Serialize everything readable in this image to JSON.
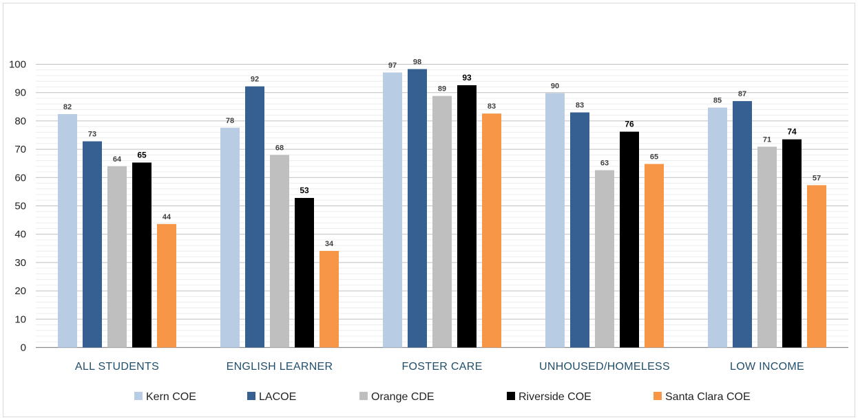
{
  "chart_data": {
    "type": "bar",
    "categories": [
      "ALL STUDENTS",
      "ENGLISH LEARNER",
      "FOSTER CARE",
      "UNHOUSED/HOMELESS",
      "LOW INCOME"
    ],
    "series": [
      {
        "name": "Kern COE",
        "color": "#b8cce4",
        "values": [
          82,
          78,
          97,
          90,
          85
        ],
        "bold_labels": false
      },
      {
        "name": "LACOE",
        "color": "#366092",
        "values": [
          73,
          92,
          98,
          83,
          87
        ],
        "bold_labels": false
      },
      {
        "name": "Orange CDE",
        "color": "#bfbfbf",
        "values": [
          64,
          68,
          89,
          63,
          71
        ],
        "bold_labels": false
      },
      {
        "name": "Riverside COE",
        "color": "#000000",
        "values": [
          65,
          53,
          93,
          76,
          74
        ],
        "bold_labels": true
      },
      {
        "name": "Santa Clara COE",
        "color": "#f79646",
        "values": [
          44,
          34,
          83,
          65,
          57
        ],
        "bold_labels": false
      }
    ],
    "bar_heights": [
      [
        82.4,
        77.6,
        97.1,
        89.8,
        84.7
      ],
      [
        72.8,
        92.2,
        98.3,
        83.0,
        87.0
      ],
      [
        64.0,
        68.0,
        88.8,
        62.6,
        70.9
      ],
      [
        65.3,
        52.8,
        92.6,
        76.2,
        73.5
      ],
      [
        43.6,
        34.1,
        82.6,
        64.8,
        57.3
      ]
    ],
    "title": "",
    "xlabel": "",
    "ylabel": "",
    "ylim": [
      0,
      100
    ],
    "yticks": [
      0,
      10,
      20,
      30,
      40,
      50,
      60,
      70,
      80,
      90,
      100
    ],
    "grid": true,
    "legend_position": "bottom"
  }
}
